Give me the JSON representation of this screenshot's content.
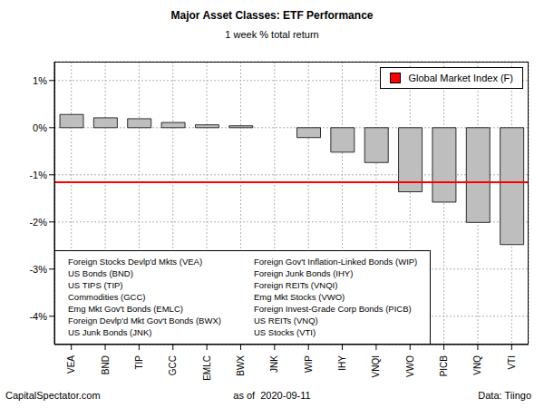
{
  "chart_data": {
    "type": "bar",
    "title": "Major Asset Classes: ETF Performance",
    "subtitle": "1 week % total return",
    "categories": [
      "VEA",
      "BND",
      "TIP",
      "GCC",
      "EMLC",
      "BWX",
      "JNK",
      "WIP",
      "IHY",
      "VNQI",
      "VWO",
      "PICB",
      "VNQ",
      "VTI"
    ],
    "category_names": [
      "Foreign Stocks Devlp'd Mkts (VEA)",
      "US Bonds (BND)",
      "US TIPS (TIP)",
      "Commodities (GCC)",
      "Emg Mkt Gov't Bonds (EMLC)",
      "Foreign Devlp'd Mkt Gov't Bonds (BWX)",
      "US Junk Bonds (JNK)",
      "Foreign Gov't Inflation-Linked Bonds (WIP)",
      "Foreign Junk Bonds (IHY)",
      "Foreign REITs (VNQI)",
      "Emg Mkt Stocks (VWO)",
      "Foreign Invest-Grade Corp Bonds (PICB)",
      "US REITs (VNQ)",
      "US Stocks (VTI)"
    ],
    "values": [
      0.28,
      0.21,
      0.19,
      0.11,
      0.06,
      0.04,
      0.0,
      -0.21,
      -0.52,
      -0.74,
      -1.36,
      -1.58,
      -2.01,
      -2.48
    ],
    "color": "#bebebe",
    "ylim": [
      -4.6,
      1.4
    ],
    "yticks": [
      {
        "value": -4,
        "label": "-4%"
      },
      {
        "value": -3,
        "label": "-3%"
      },
      {
        "value": -2,
        "label": "-2%"
      },
      {
        "value": -1,
        "label": "-1%"
      },
      {
        "value": 0,
        "label": "0%"
      },
      {
        "value": 1,
        "label": "1%"
      }
    ],
    "grid": true,
    "reference_line": {
      "label": "Global Market Index (F)",
      "value": -1.16,
      "color": "#ff0000"
    },
    "legend": "top right",
    "footer": {
      "left": "CapitalSpectator.com",
      "center": "as of  2020-09-11",
      "right": "Data: Tiingo"
    }
  }
}
